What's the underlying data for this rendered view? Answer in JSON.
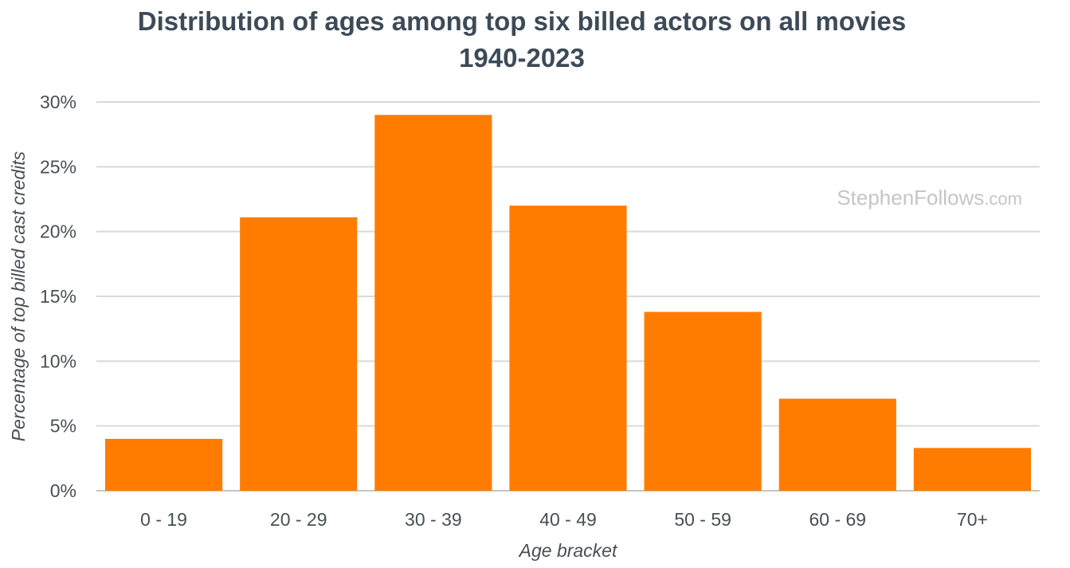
{
  "watermark": {
    "name": "StephenFollows",
    "suffix": ".com"
  },
  "colors": {
    "bar": "#ff7c00",
    "title": "#3d4a57",
    "text": "#4a4f55",
    "grid": "#d9d9d9",
    "watermark": "#c6c6c6"
  },
  "chart_data": {
    "type": "bar",
    "title": "Distribution of ages among top six billed actors on all movies",
    "subtitle": "1940-2023",
    "xlabel": "Age bracket",
    "ylabel": "Percentage of top billed cast credits",
    "categories": [
      "0 - 19",
      "20 - 29",
      "30 - 39",
      "40 - 49",
      "50 - 59",
      "60 - 69",
      "70+"
    ],
    "values": [
      4.0,
      21.1,
      29.0,
      22.0,
      13.8,
      7.1,
      3.3
    ],
    "unit": "%",
    "ylim": [
      0,
      30
    ],
    "yticks": [
      0,
      5,
      10,
      15,
      20,
      25,
      30
    ],
    "ytick_labels": [
      "0%",
      "5%",
      "10%",
      "15%",
      "20%",
      "25%",
      "30%"
    ],
    "grid": true,
    "legend": "none"
  }
}
